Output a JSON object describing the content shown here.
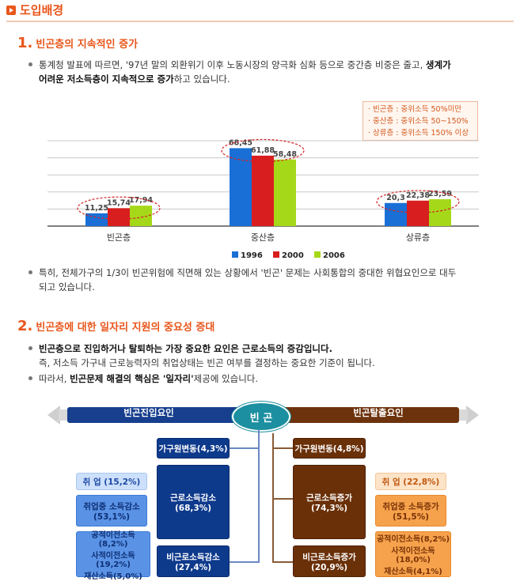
{
  "header": {
    "title": "도입배경"
  },
  "section1": {
    "num": "1.",
    "title": "빈곤층의 지속적인 증가",
    "bullet1_line1_a": "통계청 발표에 따르면, '97년 말의 외환위기 이후 노동시장의 양극화 심화 등으로 중간층 비중은 줄고, ",
    "bullet1_line1_b": "생계가",
    "bullet1_line2_b": "어려운 저소득층이 지속적으로 증가",
    "bullet1_line2_c": "하고 있습니다.",
    "legend": [
      "· 빈곤층 : 중위소득 50%미만",
      "· 중산층 : 중위소득 50~150%",
      "· 상류층 : 중위소득 150% 이상"
    ],
    "bullet2_line1": "특히, 전체가구의 1/3이 빈곤위험에 직면해 있는 상황에서 '빈곤' 문제는 사회통합의 중대한 위협요인으로 대두",
    "bullet2_line2": "되고 있습니다."
  },
  "chart_data": {
    "type": "bar",
    "categories": [
      "빈곤층",
      "중산층",
      "상류층"
    ],
    "series": [
      {
        "name": "1996",
        "color": "#1a6fd6",
        "values": [
          11.25,
          68.45,
          20.3
        ]
      },
      {
        "name": "2000",
        "color": "#d81e1e",
        "values": [
          15.74,
          61.88,
          22.38
        ]
      },
      {
        "name": "2006",
        "color": "#a6d81a",
        "values": [
          17.94,
          58.48,
          23.59
        ]
      }
    ],
    "value_labels": [
      [
        "11,25",
        "15,74",
        "17,94"
      ],
      [
        "68,45",
        "61,88",
        "58,48"
      ],
      [
        "20,3",
        "22,38",
        "23,59"
      ]
    ],
    "ylim": [
      0,
      75
    ],
    "grid": true,
    "legend_position": "bottom"
  },
  "section2": {
    "num": "2.",
    "title": "빈곤층에 대한 일자리 지원의 중요성 증대",
    "bullet1": "빈곤층으로 진입하거나 탈퇴하는 가장 중요한 요인은 근로소득의 증감입니다.",
    "bullet1_sub": "즉, 저소득 가구내 근로능력자의 취업상태는 빈곤 여부를 결정하는 중요한 기준이 됩니다.",
    "bullet2_a": "따라서, ",
    "bullet2_b": "빈곤문제 해결의 핵심은 '일자리'",
    "bullet2_c": "제공에 있습니다."
  },
  "diagram": {
    "center": "빈 곤",
    "left_banner": "빈곤진입요인",
    "right_banner": "빈곤탈출요인",
    "left_top": "가구원변동(4,3%)",
    "left_main_l1": "근로소득감소",
    "left_main_l2": "(68,3%)",
    "left_bottom_l1": "비근로소득감소",
    "left_bottom_l2": "(27,4%)",
    "left_sub1": "취 업 (15,2%)",
    "left_sub2_l1": "취업중 소득감소",
    "left_sub2_l2": "(53,1%)",
    "left_sub3_l1": "공적이전소득(8,2%)",
    "left_sub3_l2": "사적이전소득(19,2%)",
    "left_sub3_l3": "재산소득(5,0%)",
    "right_top": "가구원변동(4,8%)",
    "right_main_l1": "근로소득증가",
    "right_main_l2": "(74,3%)",
    "right_bottom_l1": "비근로소득증가",
    "right_bottom_l2": "(20,9%)",
    "right_sub1": "취 업 (22,8%)",
    "right_sub2_l1": "취업중 소득증가",
    "right_sub2_l2": "(51,5%)",
    "right_sub3_l1": "공적이전소득(8,2%)",
    "right_sub3_l2": "사적이전소득(18,0%)",
    "right_sub3_l3": "재산소득(4,1%)"
  }
}
